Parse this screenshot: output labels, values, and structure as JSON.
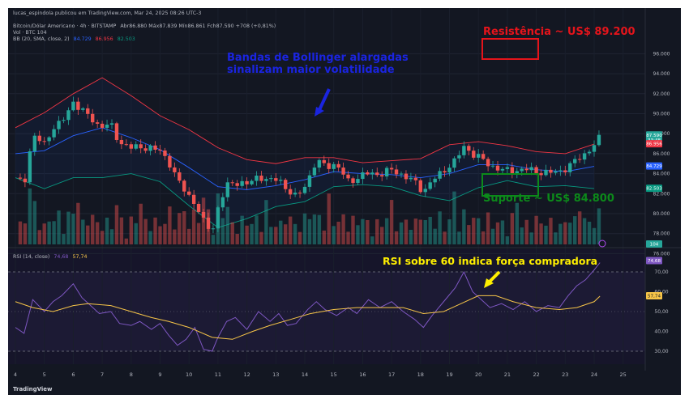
{
  "header": {
    "published": "lucas_espindola publicou em TradingView.com, Mar 24, 2025 08:26 UTC-3",
    "symbol": "Bitcoin/Dólar Americano · 4h · BITSTAMP",
    "ohlc": "Abr86.880  Máx87.839  Mín86.861  Fch87.590  +708 (+0,81%)",
    "vol": "Vol · BTC  104",
    "bb_name": "BB (20, SMA, close, 2)",
    "bb_values": [
      "84.729",
      "86.956",
      "82.503"
    ],
    "rsi_name": "RSI (14, close)",
    "rsi_values": [
      "74,68",
      "57,74"
    ]
  },
  "annotations": {
    "bollinger": "Bandas de Bollinger alargadas\nsinalizam maior volatilidade",
    "resistance": "Resistência ~ US$ 89.200",
    "support": "Suporte ~ US$ 84.800",
    "rsi": "RSI sobre 60 indica força compradora"
  },
  "price_axis": {
    "ticks": [
      "96.000",
      "94.000",
      "92.000",
      "90.000",
      "88.000",
      "86.000",
      "84.000",
      "82.000",
      "80.000",
      "78.000",
      "76.000"
    ],
    "labels": [
      {
        "text": "87.590\n33:48",
        "color": "#26a69a"
      },
      {
        "text": "86.956",
        "color": "#f23645"
      },
      {
        "text": "84.729",
        "color": "#2962ff"
      },
      {
        "text": "82.503",
        "color": "#089981"
      },
      {
        "text": "104",
        "color": "#26a69a"
      }
    ]
  },
  "rsi_axis": {
    "ticks": [
      "60,00",
      "50,00",
      "40,00",
      "30,00",
      "70,00"
    ],
    "labels": [
      {
        "text": "74,68",
        "color": "#7e57c2"
      },
      {
        "text": "57,74",
        "color": "#f7c548"
      }
    ]
  },
  "time_axis": [
    "4",
    "5",
    "6",
    "7",
    "8",
    "9",
    "10",
    "11",
    "12",
    "13",
    "14",
    "15",
    "16",
    "17",
    "18",
    "19",
    "20",
    "21",
    "22",
    "23",
    "24",
    "25"
  ],
  "footer": "TradingView",
  "colors": {
    "up": "#26a69a",
    "down": "#ef5350",
    "basis": "#2962ff",
    "upper": "#f23645",
    "lower": "#089981",
    "rsi": "#7e57c2",
    "rsi_ma": "#f7c548",
    "annot_blue": "#1a24e0",
    "annot_red": "#e5141b",
    "annot_green": "#0c8a1a",
    "annot_yellow": "#ffef00"
  },
  "chart_data": [
    {
      "type": "candlestick",
      "title": "Bitcoin/Dólar Americano · 4h · BITSTAMP",
      "x": [
        "4",
        "5",
        "6",
        "7",
        "8",
        "9",
        "10",
        "11",
        "12",
        "13",
        "14",
        "15",
        "16",
        "17",
        "18",
        "19",
        "20",
        "21",
        "22",
        "23",
        "24"
      ],
      "ylim": [
        75000,
        97000
      ],
      "close_path": [
        [
          4,
          83600
        ],
        [
          4.3,
          83000
        ],
        [
          4.6,
          87800
        ],
        [
          5.0,
          87000
        ],
        [
          5.3,
          88600
        ],
        [
          5.6,
          89100
        ],
        [
          6.0,
          91200
        ],
        [
          6.3,
          90300
        ],
        [
          6.6,
          89600
        ],
        [
          6.9,
          88700
        ],
        [
          7.3,
          88900
        ],
        [
          7.6,
          87100
        ],
        [
          8.0,
          86600
        ],
        [
          8.3,
          86700
        ],
        [
          8.7,
          86500
        ],
        [
          9.0,
          86300
        ],
        [
          9.3,
          85200
        ],
        [
          9.6,
          83300
        ],
        [
          9.9,
          82200
        ],
        [
          10.2,
          81000
        ],
        [
          10.5,
          79200
        ],
        [
          10.8,
          78300
        ],
        [
          11.0,
          80500
        ],
        [
          11.3,
          82800
        ],
        [
          11.6,
          83200
        ],
        [
          12.0,
          82900
        ],
        [
          12.4,
          83800
        ],
        [
          12.8,
          83200
        ],
        [
          13.1,
          83600
        ],
        [
          13.4,
          82300
        ],
        [
          13.7,
          81600
        ],
        [
          14.1,
          83300
        ],
        [
          14.4,
          85200
        ],
        [
          14.7,
          84900
        ],
        [
          15.1,
          84800
        ],
        [
          15.5,
          83300
        ],
        [
          15.8,
          83500
        ],
        [
          16.2,
          84100
        ],
        [
          16.6,
          83900
        ],
        [
          17.0,
          84400
        ],
        [
          17.4,
          83800
        ],
        [
          17.8,
          83200
        ],
        [
          18.1,
          82200
        ],
        [
          18.4,
          83300
        ],
        [
          18.8,
          84300
        ],
        [
          19.2,
          85300
        ],
        [
          19.5,
          86700
        ],
        [
          19.8,
          86000
        ],
        [
          20.1,
          85500
        ],
        [
          20.4,
          84800
        ],
        [
          20.8,
          84400
        ],
        [
          21.2,
          84200
        ],
        [
          21.6,
          84500
        ],
        [
          22.0,
          84200
        ],
        [
          22.4,
          84100
        ],
        [
          22.8,
          84200
        ],
        [
          23.1,
          84700
        ],
        [
          23.4,
          85400
        ],
        [
          23.7,
          86000
        ],
        [
          24.0,
          86900
        ],
        [
          24.2,
          87590
        ]
      ],
      "bollinger": {
        "basis": [
          [
            4,
            86000
          ],
          [
            5,
            86300
          ],
          [
            6,
            87800
          ],
          [
            7,
            88600
          ],
          [
            8,
            87600
          ],
          [
            9,
            86400
          ],
          [
            10,
            84600
          ],
          [
            11,
            82700
          ],
          [
            12,
            82400
          ],
          [
            13,
            82800
          ],
          [
            14,
            83400
          ],
          [
            15,
            84200
          ],
          [
            16,
            84000
          ],
          [
            17,
            83900
          ],
          [
            18,
            83600
          ],
          [
            19,
            84000
          ],
          [
            20,
            84900
          ],
          [
            21,
            84900
          ],
          [
            22,
            84400
          ],
          [
            23,
            84200
          ],
          [
            24,
            84729
          ]
        ],
        "upper": [
          [
            4,
            88600
          ],
          [
            5,
            90100
          ],
          [
            6,
            92000
          ],
          [
            7,
            93600
          ],
          [
            8,
            91800
          ],
          [
            9,
            89800
          ],
          [
            10,
            88400
          ],
          [
            11,
            86600
          ],
          [
            12,
            85400
          ],
          [
            13,
            85000
          ],
          [
            14,
            85600
          ],
          [
            15,
            85600
          ],
          [
            16,
            85100
          ],
          [
            17,
            85300
          ],
          [
            18,
            85500
          ],
          [
            19,
            86900
          ],
          [
            20,
            87200
          ],
          [
            21,
            86800
          ],
          [
            22,
            86200
          ],
          [
            23,
            86000
          ],
          [
            24,
            86956
          ]
        ],
        "lower": [
          [
            4,
            83600
          ],
          [
            5,
            82500
          ],
          [
            6,
            83600
          ],
          [
            7,
            83600
          ],
          [
            8,
            84000
          ],
          [
            9,
            83200
          ],
          [
            10,
            80800
          ],
          [
            11,
            78600
          ],
          [
            12,
            79500
          ],
          [
            13,
            80700
          ],
          [
            14,
            81200
          ],
          [
            15,
            82700
          ],
          [
            16,
            82900
          ],
          [
            17,
            82700
          ],
          [
            18,
            81800
          ],
          [
            19,
            81300
          ],
          [
            20,
            82600
          ],
          [
            21,
            83300
          ],
          [
            22,
            82700
          ],
          [
            23,
            82800
          ],
          [
            24,
            82503
          ]
        ]
      }
    },
    {
      "type": "line",
      "title": "RSI (14, close)",
      "ylim": [
        25,
        78
      ],
      "levels": [
        70,
        30
      ],
      "series": [
        {
          "name": "RSI",
          "values": [
            [
              4,
              42
            ],
            [
              4.3,
              39
            ],
            [
              4.6,
              56
            ],
            [
              5.0,
              50
            ],
            [
              5.3,
              55
            ],
            [
              5.6,
              58
            ],
            [
              6.0,
              64
            ],
            [
              6.3,
              57
            ],
            [
              6.6,
              53
            ],
            [
              6.9,
              49
            ],
            [
              7.3,
              50
            ],
            [
              7.6,
              44
            ],
            [
              8.0,
              43
            ],
            [
              8.3,
              45
            ],
            [
              8.7,
              41
            ],
            [
              9.0,
              44
            ],
            [
              9.3,
              38
            ],
            [
              9.6,
              33
            ],
            [
              9.9,
              36
            ],
            [
              10.2,
              42
            ],
            [
              10.5,
              31
            ],
            [
              10.8,
              30
            ],
            [
              11.0,
              37
            ],
            [
              11.3,
              45
            ],
            [
              11.6,
              47
            ],
            [
              12.0,
              41
            ],
            [
              12.4,
              50
            ],
            [
              12.8,
              45
            ],
            [
              13.1,
              49
            ],
            [
              13.4,
              43
            ],
            [
              13.7,
              44
            ],
            [
              14.1,
              51
            ],
            [
              14.4,
              55
            ],
            [
              14.7,
              51
            ],
            [
              15.1,
              48
            ],
            [
              15.5,
              52
            ],
            [
              15.8,
              49
            ],
            [
              16.2,
              56
            ],
            [
              16.6,
              52
            ],
            [
              17.0,
              55
            ],
            [
              17.4,
              50
            ],
            [
              17.8,
              46
            ],
            [
              18.1,
              42
            ],
            [
              18.4,
              48
            ],
            [
              18.8,
              55
            ],
            [
              19.2,
              62
            ],
            [
              19.5,
              70
            ],
            [
              19.8,
              60
            ],
            [
              20.1,
              56
            ],
            [
              20.4,
              52
            ],
            [
              20.8,
              54
            ],
            [
              21.2,
              51
            ],
            [
              21.6,
              55
            ],
            [
              22.0,
              50
            ],
            [
              22.4,
              53
            ],
            [
              22.8,
              52
            ],
            [
              23.1,
              58
            ],
            [
              23.4,
              63
            ],
            [
              23.7,
              66
            ],
            [
              24.0,
              71
            ],
            [
              24.2,
              74.68
            ]
          ]
        },
        {
          "name": "RSI-based MA",
          "values": [
            [
              4,
              55
            ],
            [
              4.6,
              52
            ],
            [
              5.3,
              50
            ],
            [
              6.0,
              53
            ],
            [
              6.5,
              54
            ],
            [
              7.3,
              53
            ],
            [
              8.0,
              50
            ],
            [
              8.7,
              47
            ],
            [
              9.3,
              45
            ],
            [
              10.0,
              42
            ],
            [
              10.8,
              37
            ],
            [
              11.5,
              36
            ],
            [
              12.2,
              40
            ],
            [
              12.8,
              43
            ],
            [
              13.5,
              46
            ],
            [
              14.2,
              49
            ],
            [
              15.0,
              51
            ],
            [
              15.8,
              52
            ],
            [
              16.6,
              52
            ],
            [
              17.4,
              52
            ],
            [
              18.1,
              49
            ],
            [
              18.8,
              50
            ],
            [
              19.4,
              54
            ],
            [
              20.0,
              58
            ],
            [
              20.6,
              58
            ],
            [
              21.2,
              55
            ],
            [
              22.0,
              52
            ],
            [
              22.8,
              51
            ],
            [
              23.4,
              52
            ],
            [
              24.0,
              55
            ],
            [
              24.2,
              57.74
            ]
          ]
        }
      ]
    }
  ]
}
